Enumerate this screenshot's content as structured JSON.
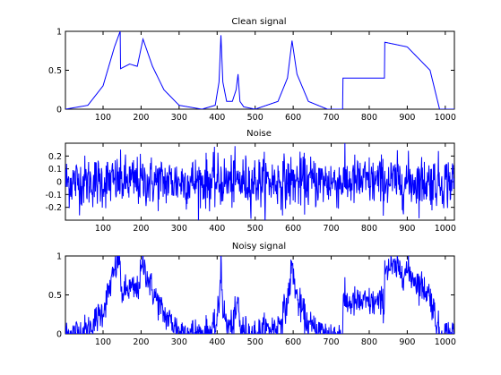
{
  "chart_data": [
    {
      "type": "line",
      "title": "Clean signal",
      "xlim": [
        1,
        1024
      ],
      "ylim": [
        0,
        1
      ],
      "xticks": [
        "100",
        "200",
        "300",
        "400",
        "500",
        "600",
        "700",
        "800",
        "900",
        "1000"
      ],
      "yticks": [
        "0",
        "0.5",
        "1"
      ],
      "line_color": "#0000ff",
      "series": [
        {
          "generator": "piecewise_bumps_and_steps",
          "keypoints": {
            "x": [
              1,
              60,
              100,
              130,
              145,
              146,
              170,
              190,
              205,
              230,
              260,
              300,
              360,
              395,
              405,
              410,
              415,
              425,
              440,
              450,
              455,
              460,
              470,
              500,
              560,
              585,
              597,
              610,
              640,
              690,
              730,
              731,
              840,
              841,
              900,
              960,
              985
            ],
            "y": [
              0,
              0.05,
              0.3,
              0.8,
              1.0,
              0.52,
              0.58,
              0.55,
              0.9,
              0.55,
              0.25,
              0.05,
              0.0,
              0.05,
              0.35,
              0.95,
              0.35,
              0.1,
              0.1,
              0.25,
              0.45,
              0.1,
              0.03,
              0.0,
              0.1,
              0.4,
              0.88,
              0.45,
              0.1,
              0.0,
              0.0,
              0.4,
              0.4,
              0.86,
              0.8,
              0.5,
              0.0
            ]
          }
        }
      ]
    },
    {
      "type": "line",
      "title": "Noise",
      "xlim": [
        1,
        1024
      ],
      "ylim": [
        -0.3,
        0.3
      ],
      "xticks": [
        "100",
        "200",
        "300",
        "400",
        "500",
        "600",
        "700",
        "800",
        "900",
        "1000"
      ],
      "yticks": [
        "-0.2",
        "-0.1",
        "0",
        "0.1",
        "0.2"
      ],
      "line_color": "#0000ff",
      "series": [
        {
          "generator": "gaussian_noise",
          "sigma": 0.1,
          "n": 1024
        }
      ]
    },
    {
      "type": "line",
      "title": "Noisy signal",
      "xlim": [
        1,
        1024
      ],
      "ylim": [
        0,
        1
      ],
      "xticks": [
        "100",
        "200",
        "300",
        "400",
        "500",
        "600",
        "700",
        "800",
        "900",
        "1000"
      ],
      "yticks": [
        "0",
        "0.5",
        "1"
      ],
      "line_color": "#0000ff",
      "series": [
        {
          "generator": "clean_plus_noise"
        }
      ]
    }
  ]
}
